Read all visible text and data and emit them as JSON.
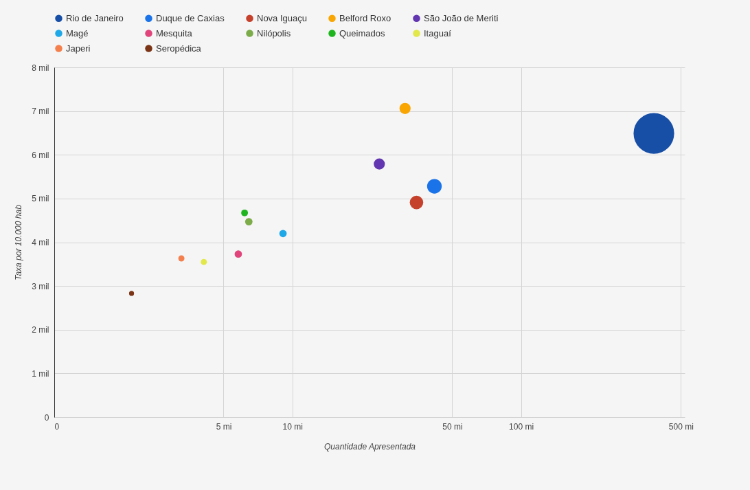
{
  "chart_data": {
    "type": "bubble",
    "xlabel": "Quantidade Apresentada",
    "ylabel": "Taxa por 10.000 hab",
    "log": "x",
    "xlim": [
      0,
      520
    ],
    "ylim": [
      0,
      8
    ],
    "xticks": [
      {
        "value": 0,
        "label": "0"
      },
      {
        "value": 5,
        "label": "5 mi"
      },
      {
        "value": 10,
        "label": "10 mi"
      },
      {
        "value": 50,
        "label": "50 mi"
      },
      {
        "value": 100,
        "label": "100 mi"
      },
      {
        "value": 500,
        "label": "500 mi"
      }
    ],
    "yticks": [
      {
        "value": 0,
        "label": "0"
      },
      {
        "value": 1,
        "label": "1 mil"
      },
      {
        "value": 2,
        "label": "2 mil"
      },
      {
        "value": 3,
        "label": "3 mil"
      },
      {
        "value": 4,
        "label": "4 mil"
      },
      {
        "value": 5,
        "label": "5 mil"
      },
      {
        "value": 6,
        "label": "6 mil"
      },
      {
        "value": 7,
        "label": "7 mil"
      },
      {
        "value": 8,
        "label": "8 mil"
      }
    ],
    "grid": true,
    "legend": "top",
    "marker": "circle",
    "series": [
      {
        "name": "Rio de Janeiro",
        "color": "#174ea6",
        "x": [
          381
        ],
        "values": [
          6.49
        ],
        "sizes": [
          1
        ]
      },
      {
        "name": "Duque de Caxias",
        "color": "#1a73e8",
        "x": [
          41.8
        ],
        "values": [
          5.28
        ],
        "sizes": [
          0.13
        ]
      },
      {
        "name": "Nova Iguaçu",
        "color": "#c5412c",
        "x": [
          34.9
        ],
        "values": [
          4.91
        ],
        "sizes": [
          0.11
        ]
      },
      {
        "name": "Belford Roxo",
        "color": "#f9a602",
        "x": [
          31.1
        ],
        "values": [
          7.06
        ],
        "sizes": [
          0.075
        ]
      },
      {
        "name": "São João de Meriti",
        "color": "#6236b0",
        "x": [
          24
        ],
        "values": [
          5.79
        ],
        "sizes": [
          0.075
        ]
      },
      {
        "name": "Magé",
        "color": "#1ea8e8",
        "x": [
          9.1
        ],
        "values": [
          4.2
        ],
        "sizes": [
          0.033
        ]
      },
      {
        "name": "Mesquita",
        "color": "#e0447a",
        "x": [
          5.8
        ],
        "values": [
          3.73
        ],
        "sizes": [
          0.033
        ]
      },
      {
        "name": "Nilópolis",
        "color": "#7cac4a",
        "x": [
          6.45
        ],
        "values": [
          4.47
        ],
        "sizes": [
          0.033
        ]
      },
      {
        "name": "Queimados",
        "color": "#1fb51f",
        "x": [
          6.18
        ],
        "values": [
          4.67
        ],
        "sizes": [
          0.028
        ]
      },
      {
        "name": "Itaguaí",
        "color": "#e2e84a",
        "x": [
          4.1
        ],
        "values": [
          3.55
        ],
        "sizes": [
          0.023
        ]
      },
      {
        "name": "Japeri",
        "color": "#f4804e",
        "x": [
          3.27
        ],
        "values": [
          3.63
        ],
        "sizes": [
          0.023
        ]
      },
      {
        "name": "Seropédica",
        "color": "#7b3416",
        "x": [
          1.98
        ],
        "values": [
          2.83
        ],
        "sizes": [
          0.015
        ]
      }
    ]
  }
}
